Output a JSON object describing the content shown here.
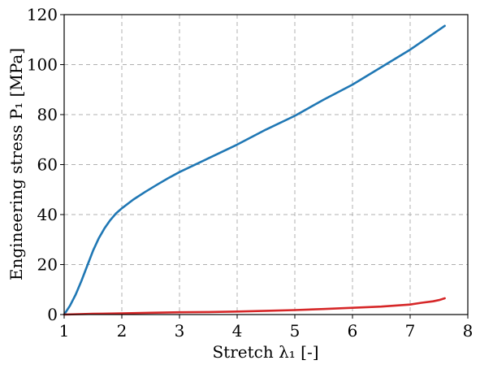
{
  "chart_data": {
    "type": "line",
    "xlabel": "Stretch λ₁ [-]",
    "ylabel": "Engineering stress P₁ [MPa]",
    "xlim": [
      1,
      8
    ],
    "ylim": [
      0,
      120
    ],
    "xticks": [
      1,
      2,
      3,
      4,
      5,
      6,
      7,
      8
    ],
    "yticks": [
      0,
      20,
      40,
      60,
      80,
      100,
      120
    ],
    "grid": true,
    "series": [
      {
        "color": "#1f77b4",
        "x": [
          1.0,
          1.1,
          1.2,
          1.3,
          1.4,
          1.5,
          1.6,
          1.7,
          1.8,
          1.9,
          2.0,
          2.2,
          2.4,
          2.6,
          2.8,
          3.0,
          3.5,
          4.0,
          4.5,
          5.0,
          5.5,
          6.0,
          6.5,
          7.0,
          7.6
        ],
        "y": [
          0.0,
          3.5,
          8.0,
          13.5,
          19.5,
          25.5,
          30.5,
          34.5,
          37.8,
          40.5,
          42.5,
          46.0,
          49.0,
          51.8,
          54.5,
          57.0,
          62.5,
          68.0,
          74.0,
          79.5,
          86.0,
          92.0,
          99.0,
          106.0,
          115.5
        ]
      },
      {
        "color": "#d62728",
        "x": [
          1.0,
          1.5,
          2.0,
          2.5,
          3.0,
          3.5,
          4.0,
          4.5,
          5.0,
          5.5,
          6.0,
          6.5,
          7.0,
          7.2,
          7.4,
          7.5,
          7.6
        ],
        "y": [
          0.0,
          0.3,
          0.5,
          0.7,
          0.9,
          1.0,
          1.2,
          1.5,
          1.8,
          2.2,
          2.7,
          3.2,
          4.0,
          4.7,
          5.3,
          5.8,
          6.5
        ]
      }
    ]
  }
}
